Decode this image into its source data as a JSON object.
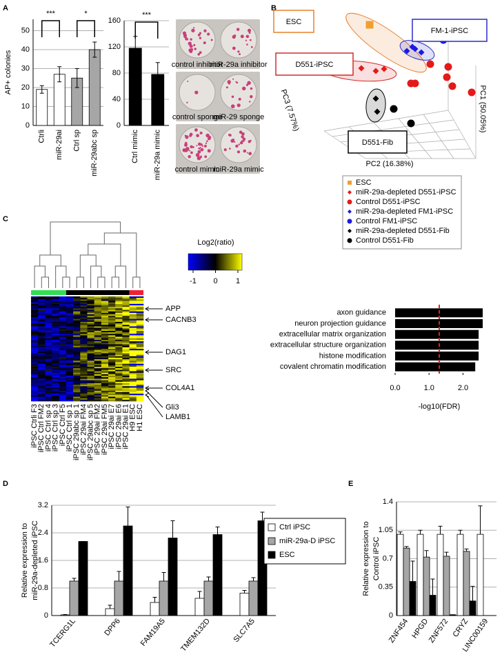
{
  "panels": [
    "A",
    "B",
    "C",
    "D",
    "E"
  ],
  "photos": [
    [
      "control inhibitor",
      "miR-29a inhibitor"
    ],
    [
      "control sponge",
      "miR-29 sponge"
    ],
    [
      "control mimic",
      "miR-29a mimic"
    ]
  ],
  "pca": {
    "xlabel": "PC2 (16.38%)",
    "ylabel": "PC1 (50.05%)",
    "zlabel": "PC3 (7.57%)",
    "groups": [
      {
        "label": "ESC",
        "color": "#e8812a"
      },
      {
        "label": "FM-1-iPSC",
        "color": "#2b2bc8"
      },
      {
        "label": "D551-iPSC",
        "color": "#d42a2a"
      },
      {
        "label": "D551-Fib",
        "color": "#000000"
      }
    ],
    "legend": [
      {
        "name": "ESC",
        "color": "#f0a030",
        "marker": "square"
      },
      {
        "name": "miR-29a-depleted D551-iPSC",
        "color": "#e41a1a",
        "marker": "diamond"
      },
      {
        "name": "Control D551-iPSC",
        "color": "#e41a1a",
        "marker": "circle"
      },
      {
        "name": "miR-29a-depleted FM1-iPSC",
        "color": "#1a1ae4",
        "marker": "diamond"
      },
      {
        "name": "Control FM1-iPSC",
        "color": "#1a1ae4",
        "marker": "circle"
      },
      {
        "name": "miR-29a-depleted D551-Fib",
        "color": "#000000",
        "marker": "diamond"
      },
      {
        "name": "Control D551-Fib",
        "color": "#000000",
        "marker": "circle"
      }
    ]
  },
  "heatmap": {
    "title": "Log2(ratio)",
    "ticks": [
      -1,
      0,
      1
    ],
    "colors": [
      "#0000ff",
      "#000000",
      "#ffff00"
    ],
    "samples": [
      "iPSC Ctrli F3",
      "iPSC Ctrl FM2",
      "iPSC Ctrl sp 4",
      "iPSC Ctrl sp 3",
      "iPSC Ctrl F5",
      "iPSC Ctrl sp 1",
      "iPSC 29abc sp 1",
      "iPSC 29ai FM4",
      "iPSC 29abc sp 5",
      "iPSC 29ai FM2",
      "iPSC 29ai FM5",
      "iPSC 29ai E7",
      "iPSC 29ai E6",
      "iPSC 29ai E1",
      "H9 ESC",
      "H1 ESC"
    ],
    "group_colors": [
      "#33dd55",
      "#000000",
      "#ee2233"
    ],
    "genes": [
      "APP",
      "CACNB3",
      "DAG1",
      "SRC",
      "COL4A1",
      "Gli3",
      "LAMB1"
    ]
  },
  "chart_data": [
    {
      "type": "bar",
      "ylabel": "AP+ colonies",
      "categories": [
        "Ctrli",
        "miR-29ai",
        "Ctrl sp",
        "miR-29abc sp"
      ],
      "values": [
        19,
        27,
        25,
        40
      ],
      "errors": [
        2,
        4,
        5,
        4
      ],
      "colors": [
        "#ffffff",
        "#ffffff",
        "#a6a6a6",
        "#a6a6a6"
      ],
      "ylim": [
        0,
        56
      ],
      "yticks": [
        0,
        10,
        20,
        30,
        40,
        50
      ],
      "grid": true,
      "annotations": [
        "***",
        "*"
      ]
    },
    {
      "type": "bar",
      "categories": [
        "Ctrl mimic",
        "miR-29a mimic"
      ],
      "values": [
        118,
        78
      ],
      "errors": [
        18,
        18
      ],
      "colors": [
        "#000000",
        "#000000"
      ],
      "ylim": [
        0,
        160
      ],
      "yticks": [
        0,
        40,
        80,
        120,
        160
      ],
      "grid": true,
      "annotations": [
        "***"
      ]
    },
    {
      "type": "barh",
      "xlabel": "-log10(FDR)",
      "categories": [
        "axon guidance",
        "neuron projection guidance",
        "extracellular matrix organization",
        "extracellular structure organization",
        "histone modification",
        "covalent chromatin modification"
      ],
      "values": [
        2.58,
        2.58,
        2.46,
        2.46,
        2.46,
        2.36
      ],
      "color": "#000000",
      "xlim": [
        0,
        2.6
      ],
      "xticks": [
        {
          "value": 0,
          "label": "0.0"
        },
        {
          "value": 1,
          "label": "1.0"
        },
        {
          "value": 2,
          "label": "2.0"
        }
      ],
      "ref_line": 1.3,
      "ref_color": "#e02020"
    },
    {
      "type": "bar",
      "ylabel": [
        "Relative expression to",
        "miR-29a-depleted iPSC"
      ],
      "categories": [
        "TCERG1L",
        "DPP6",
        "FAM19A5",
        "TMEM132D",
        "SLC7A5"
      ],
      "ylim": [
        0,
        3.2
      ],
      "yticks": [
        0,
        0.8,
        1.6,
        2.4,
        3.2
      ],
      "grid": true,
      "legend": "upper right",
      "series": [
        {
          "name": "Ctrl iPSC",
          "color": "#ffffff",
          "values": [
            0.02,
            0.2,
            0.38,
            0.5,
            0.65
          ],
          "errors": [
            0.01,
            0.1,
            0.15,
            0.2,
            0.08
          ]
        },
        {
          "name": "miR-29a-D iPSC",
          "color": "#a6a6a6",
          "values": [
            1,
            1,
            1,
            1,
            1
          ],
          "errors": [
            0.08,
            0.28,
            0.25,
            0.12,
            0.1
          ]
        },
        {
          "name": "ESC",
          "color": "#000000",
          "values": [
            2.15,
            2.6,
            2.25,
            2.35,
            2.75
          ],
          "errors": [
            0,
            0.55,
            0.5,
            0.22,
            0.25
          ]
        }
      ]
    },
    {
      "type": "bar",
      "ylabel": [
        "Relative expression to",
        "Control iPSC"
      ],
      "categories": [
        "ZNF454",
        "HPGD",
        "ZNF572",
        "CRYZ",
        "LINC00159"
      ],
      "ylim": [
        0,
        1.4
      ],
      "yticks": [
        0,
        0.35,
        0.7,
        1.05,
        1.4
      ],
      "grid": true,
      "series": [
        {
          "color": "#ffffff",
          "values": [
            1,
            1,
            1,
            1,
            1
          ],
          "errors": [
            0.03,
            0.05,
            0.1,
            0.05,
            0.35
          ]
        },
        {
          "color": "#a6a6a6",
          "values": [
            0.83,
            0.72,
            0.73,
            0.79,
            null
          ],
          "errors": [
            0.02,
            0.08,
            0.05,
            0.03,
            null
          ]
        },
        {
          "color": "#000000",
          "values": [
            0.42,
            0.25,
            0.01,
            0.18,
            null
          ],
          "errors": [
            0.25,
            0.2,
            0,
            0.18,
            null
          ]
        }
      ]
    }
  ]
}
